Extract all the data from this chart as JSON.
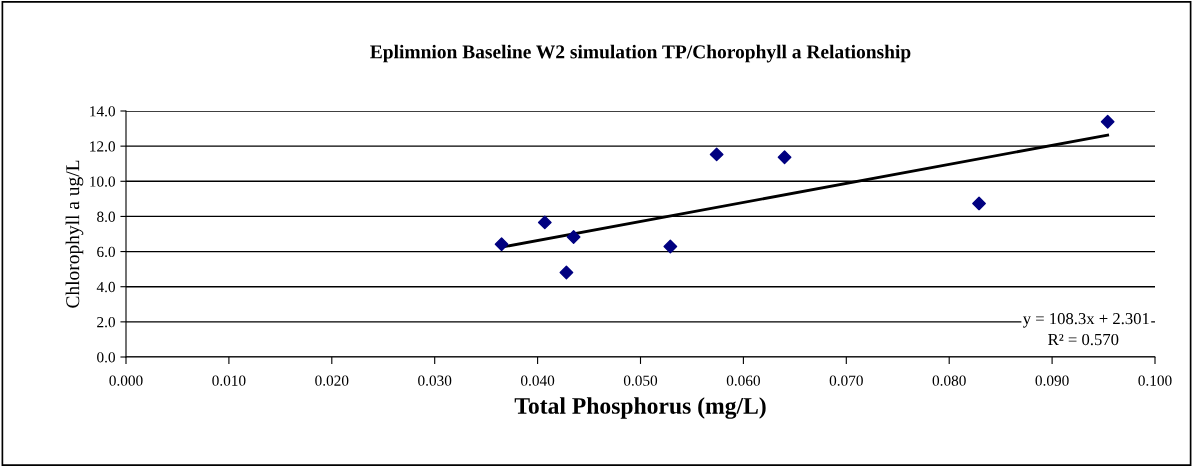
{
  "chart_data": {
    "type": "scatter",
    "title": "Eplimnion Baseline W2 simulation TP/Chorophyll a Relationship",
    "xlabel": "Total Phosphorus (mg/L)",
    "ylabel": "Chlorophyll a ug/L",
    "series": [
      {
        "color": "#000080",
        "marker": "diamond",
        "x": [
          0.0365,
          0.0407,
          0.0428,
          0.0435,
          0.0529,
          0.0574,
          0.064,
          0.0829,
          0.0954
        ],
        "values": [
          6.42,
          7.66,
          4.81,
          6.83,
          6.29,
          11.53,
          11.37,
          8.74,
          13.39
        ]
      },
      {
        "type": "line",
        "color": "#000000",
        "marker": "none",
        "x": [
          0.0365,
          0.0954
        ],
        "values": [
          6.25,
          12.63
        ]
      }
    ],
    "annotations": [
      "y = 108.3x + 2.301",
      "R² = 0.570"
    ],
    "xlim": [
      0,
      0.1
    ],
    "xticks": [
      {
        "value": 0,
        "label": "0.000"
      },
      {
        "value": 0.01,
        "label": "0.010"
      },
      {
        "value": 0.02,
        "label": "0.020"
      },
      {
        "value": 0.03,
        "label": "0.030"
      },
      {
        "value": 0.04,
        "label": "0.040"
      },
      {
        "value": 0.05,
        "label": "0.050"
      },
      {
        "value": 0.06,
        "label": "0.060"
      },
      {
        "value": 0.07,
        "label": "0.070"
      },
      {
        "value": 0.08,
        "label": "0.080"
      },
      {
        "value": 0.09,
        "label": "0.090"
      },
      {
        "value": 0.1,
        "label": "0.100"
      }
    ],
    "ylim": [
      0,
      14
    ],
    "yticks": [
      {
        "value": 0,
        "label": "0.0"
      },
      {
        "value": 2,
        "label": "2.0"
      },
      {
        "value": 4,
        "label": "4.0"
      },
      {
        "value": 6,
        "label": "6.0"
      },
      {
        "value": 8,
        "label": "8.0"
      },
      {
        "value": 10,
        "label": "10.0"
      },
      {
        "value": 12,
        "label": "12.0"
      },
      {
        "value": 14,
        "label": "14.0"
      }
    ],
    "grid": "y"
  }
}
